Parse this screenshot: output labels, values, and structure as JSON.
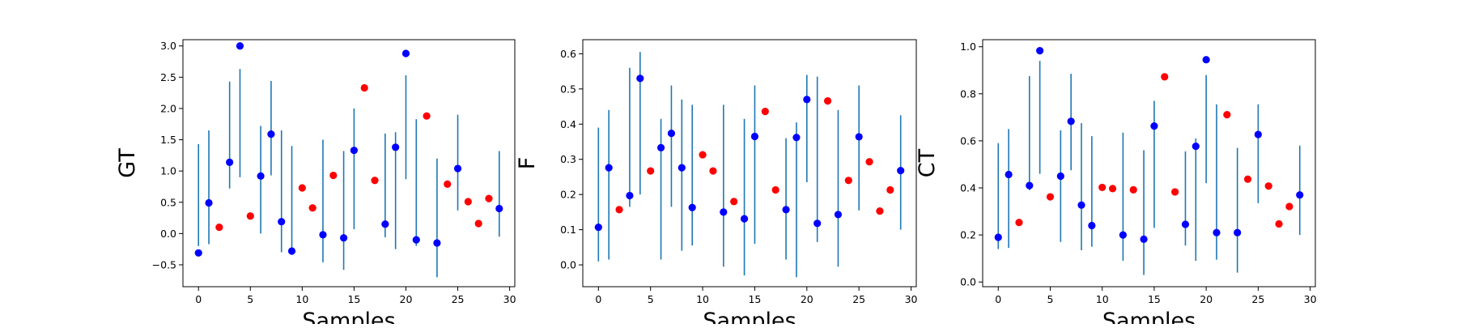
{
  "chart_data": [
    {
      "type": "scatter",
      "title": "",
      "xlabel": "Samples",
      "ylabel": "GT",
      "xlim": [
        -1.5,
        30.5
      ],
      "ylim": [
        -0.85,
        3.1
      ],
      "xticks": [
        0,
        5,
        10,
        15,
        20,
        25,
        30
      ],
      "yticks": [
        -0.5,
        0.0,
        0.5,
        1.0,
        1.5,
        2.0,
        2.5,
        3.0
      ],
      "ytick_labels": [
        "−0.5",
        "0.0",
        "0.5",
        "1.0",
        "1.5",
        "2.0",
        "2.5",
        "3.0"
      ],
      "errorbar_series": {
        "name": "GT errorbars",
        "color": "#1f77b4",
        "points": [
          {
            "x": 0,
            "low": -0.2,
            "high": 1.43
          },
          {
            "x": 1,
            "low": -0.17,
            "high": 1.65
          },
          {
            "x": 3,
            "low": 0.72,
            "high": 2.43
          },
          {
            "x": 4,
            "low": 0.9,
            "high": 2.63
          },
          {
            "x": 6,
            "low": 0.0,
            "high": 1.72
          },
          {
            "x": 7,
            "low": 0.93,
            "high": 2.44
          },
          {
            "x": 8,
            "low": -0.3,
            "high": 1.65
          },
          {
            "x": 9,
            "low": -0.28,
            "high": 1.4
          },
          {
            "x": 12,
            "low": -0.46,
            "high": 1.5
          },
          {
            "x": 14,
            "low": -0.58,
            "high": 1.32
          },
          {
            "x": 15,
            "low": 0.07,
            "high": 2.0
          },
          {
            "x": 18,
            "low": -0.06,
            "high": 1.6
          },
          {
            "x": 19,
            "low": -0.25,
            "high": 1.62
          },
          {
            "x": 20,
            "low": 0.87,
            "high": 2.53
          },
          {
            "x": 21,
            "low": -0.2,
            "high": 1.83
          },
          {
            "x": 23,
            "low": -0.7,
            "high": 1.2
          },
          {
            "x": 25,
            "low": 0.37,
            "high": 1.9
          },
          {
            "x": 29,
            "low": -0.05,
            "high": 1.32
          }
        ]
      },
      "series": [
        {
          "name": "blue",
          "color": "#0000ff",
          "points": [
            [
              0,
              -0.31
            ],
            [
              1,
              0.49
            ],
            [
              3,
              1.14
            ],
            [
              4,
              3.0
            ],
            [
              6,
              0.92
            ],
            [
              7,
              1.59
            ],
            [
              8,
              0.19
            ],
            [
              9,
              -0.28
            ],
            [
              12,
              -0.02
            ],
            [
              14,
              -0.07
            ],
            [
              15,
              1.33
            ],
            [
              18,
              0.15
            ],
            [
              19,
              1.38
            ],
            [
              20,
              2.88
            ],
            [
              21,
              -0.1
            ],
            [
              23,
              -0.15
            ],
            [
              25,
              1.04
            ],
            [
              29,
              0.4
            ]
          ]
        },
        {
          "name": "red",
          "color": "#ff0000",
          "points": [
            [
              2,
              0.1
            ],
            [
              5,
              0.28
            ],
            [
              10,
              0.73
            ],
            [
              11,
              0.41
            ],
            [
              13,
              0.93
            ],
            [
              16,
              2.33
            ],
            [
              17,
              0.85
            ],
            [
              22,
              1.88
            ],
            [
              24,
              0.79
            ],
            [
              26,
              0.51
            ],
            [
              27,
              0.16
            ],
            [
              28,
              0.56
            ]
          ]
        }
      ]
    },
    {
      "type": "scatter",
      "title": "",
      "xlabel": "Samples",
      "ylabel": "F",
      "xlim": [
        -1.5,
        30.5
      ],
      "ylim": [
        -0.062,
        0.64
      ],
      "xticks": [
        0,
        5,
        10,
        15,
        20,
        25,
        30
      ],
      "yticks": [
        0.0,
        0.1,
        0.2,
        0.3,
        0.4,
        0.5,
        0.6
      ],
      "ytick_labels": [
        "0.0",
        "0.1",
        "0.2",
        "0.3",
        "0.4",
        "0.5",
        "0.6"
      ],
      "errorbar_series": {
        "name": "F errorbars",
        "color": "#1f77b4",
        "points": [
          {
            "x": 0,
            "low": 0.01,
            "high": 0.39
          },
          {
            "x": 1,
            "low": 0.015,
            "high": 0.44
          },
          {
            "x": 3,
            "low": 0.165,
            "high": 0.56
          },
          {
            "x": 4,
            "low": 0.2,
            "high": 0.605
          },
          {
            "x": 6,
            "low": 0.015,
            "high": 0.415
          },
          {
            "x": 7,
            "low": 0.165,
            "high": 0.51
          },
          {
            "x": 8,
            "low": 0.04,
            "high": 0.47
          },
          {
            "x": 9,
            "low": 0.055,
            "high": 0.455
          },
          {
            "x": 12,
            "low": -0.005,
            "high": 0.455
          },
          {
            "x": 14,
            "low": -0.03,
            "high": 0.415
          },
          {
            "x": 15,
            "low": 0.06,
            "high": 0.51
          },
          {
            "x": 18,
            "low": 0.015,
            "high": 0.36
          },
          {
            "x": 19,
            "low": -0.035,
            "high": 0.405
          },
          {
            "x": 20,
            "low": 0.235,
            "high": 0.54
          },
          {
            "x": 21,
            "low": 0.065,
            "high": 0.535
          },
          {
            "x": 23,
            "low": -0.005,
            "high": 0.44
          },
          {
            "x": 25,
            "low": 0.155,
            "high": 0.51
          },
          {
            "x": 29,
            "low": 0.1,
            "high": 0.425
          }
        ]
      },
      "series": [
        {
          "name": "blue",
          "color": "#0000ff",
          "points": [
            [
              0,
              0.107
            ],
            [
              1,
              0.276
            ],
            [
              3,
              0.197
            ],
            [
              4,
              0.53
            ],
            [
              6,
              0.333
            ],
            [
              7,
              0.374
            ],
            [
              8,
              0.276
            ],
            [
              9,
              0.163
            ],
            [
              12,
              0.15
            ],
            [
              14,
              0.131
            ],
            [
              15,
              0.365
            ],
            [
              18,
              0.157
            ],
            [
              19,
              0.362
            ],
            [
              20,
              0.47
            ],
            [
              21,
              0.118
            ],
            [
              23,
              0.143
            ],
            [
              25,
              0.364
            ],
            [
              29,
              0.268
            ]
          ]
        },
        {
          "name": "red",
          "color": "#ff0000",
          "points": [
            [
              2,
              0.157
            ],
            [
              5,
              0.267
            ],
            [
              10,
              0.313
            ],
            [
              11,
              0.267
            ],
            [
              13,
              0.18
            ],
            [
              16,
              0.436
            ],
            [
              17,
              0.213
            ],
            [
              22,
              0.466
            ],
            [
              24,
              0.24
            ],
            [
              26,
              0.293
            ],
            [
              27,
              0.153
            ],
            [
              28,
              0.213
            ]
          ]
        }
      ]
    },
    {
      "type": "scatter",
      "title": "",
      "xlabel": "Samples",
      "ylabel": "CT",
      "xlim": [
        -1.5,
        30.5
      ],
      "ylim": [
        -0.02,
        1.03
      ],
      "xticks": [
        0,
        5,
        10,
        15,
        20,
        25,
        30
      ],
      "yticks": [
        0.0,
        0.2,
        0.4,
        0.6,
        0.8,
        1.0
      ],
      "ytick_labels": [
        "0.0",
        "0.2",
        "0.4",
        "0.6",
        "0.8",
        "1.0"
      ],
      "errorbar_series": {
        "name": "CT errorbars",
        "color": "#1f77b4",
        "points": [
          {
            "x": 0,
            "low": 0.14,
            "high": 0.59
          },
          {
            "x": 1,
            "low": 0.145,
            "high": 0.65
          },
          {
            "x": 3,
            "low": 0.39,
            "high": 0.875
          },
          {
            "x": 4,
            "low": 0.46,
            "high": 0.94
          },
          {
            "x": 6,
            "low": 0.17,
            "high": 0.645
          },
          {
            "x": 7,
            "low": 0.475,
            "high": 0.885
          },
          {
            "x": 8,
            "low": 0.135,
            "high": 0.675
          },
          {
            "x": 9,
            "low": 0.15,
            "high": 0.62
          },
          {
            "x": 12,
            "low": 0.09,
            "high": 0.635
          },
          {
            "x": 14,
            "low": 0.03,
            "high": 0.56
          },
          {
            "x": 15,
            "low": 0.23,
            "high": 0.77
          },
          {
            "x": 18,
            "low": 0.155,
            "high": 0.555
          },
          {
            "x": 19,
            "low": 0.09,
            "high": 0.61
          },
          {
            "x": 20,
            "low": 0.42,
            "high": 0.88
          },
          {
            "x": 21,
            "low": 0.095,
            "high": 0.755
          },
          {
            "x": 23,
            "low": 0.04,
            "high": 0.57
          },
          {
            "x": 25,
            "low": 0.335,
            "high": 0.755
          },
          {
            "x": 29,
            "low": 0.2,
            "high": 0.58
          }
        ]
      },
      "series": [
        {
          "name": "blue",
          "color": "#0000ff",
          "points": [
            [
              0,
              0.19
            ],
            [
              1,
              0.457
            ],
            [
              3,
              0.41
            ],
            [
              4,
              0.983
            ],
            [
              6,
              0.45
            ],
            [
              7,
              0.683
            ],
            [
              8,
              0.327
            ],
            [
              9,
              0.24
            ],
            [
              12,
              0.2
            ],
            [
              14,
              0.182
            ],
            [
              15,
              0.663
            ],
            [
              18,
              0.245
            ],
            [
              19,
              0.577
            ],
            [
              20,
              0.945
            ],
            [
              21,
              0.21
            ],
            [
              23,
              0.21
            ],
            [
              25,
              0.627
            ],
            [
              29,
              0.37
            ]
          ]
        },
        {
          "name": "red",
          "color": "#ff0000",
          "points": [
            [
              2,
              0.253
            ],
            [
              5,
              0.362
            ],
            [
              10,
              0.402
            ],
            [
              11,
              0.397
            ],
            [
              13,
              0.392
            ],
            [
              16,
              0.872
            ],
            [
              17,
              0.383
            ],
            [
              22,
              0.711
            ],
            [
              24,
              0.437
            ],
            [
              26,
              0.408
            ],
            [
              27,
              0.247
            ],
            [
              28,
              0.321
            ]
          ]
        }
      ]
    }
  ]
}
